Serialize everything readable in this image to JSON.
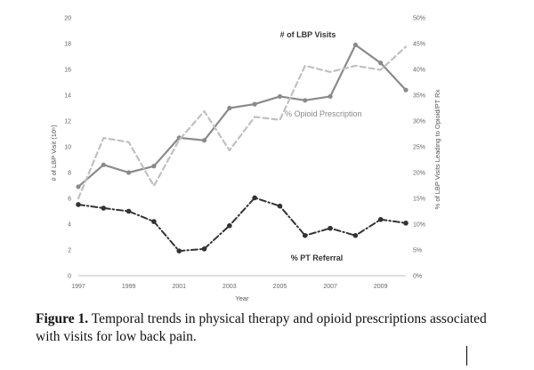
{
  "chart_data": {
    "type": "line",
    "x": [
      1997,
      1998,
      1999,
      2000,
      2001,
      2002,
      2003,
      2004,
      2005,
      2006,
      2007,
      2008,
      2009,
      2010
    ],
    "x_tick_labels": [
      "1997",
      "1999",
      "2001",
      "2003",
      "2005",
      "2007",
      "2009"
    ],
    "x_tick_values": [
      1997,
      1999,
      2001,
      2003,
      2005,
      2007,
      2009
    ],
    "xlabel": "Year",
    "xlim": [
      1997,
      2010
    ],
    "ylabel": "# of LBP Visit (10⁶)",
    "ylim": [
      0,
      20
    ],
    "y_tick_values": [
      0,
      2,
      4,
      6,
      8,
      10,
      12,
      14,
      16,
      18,
      20
    ],
    "y_tick_labels": [
      "0",
      "2",
      "4",
      "6",
      "8",
      "10",
      "12",
      "14",
      "16",
      "18",
      "20"
    ],
    "y2label": "% of LBP Visits Leading to Opioid/PT Rx",
    "y2lim": [
      0,
      50
    ],
    "y2_tick_values": [
      0,
      5,
      10,
      15,
      20,
      25,
      30,
      35,
      40,
      45,
      50
    ],
    "y2_tick_labels": [
      "0%",
      "5%",
      "10%",
      "15%",
      "20%",
      "25%",
      "30%",
      "35%",
      "40%",
      "45%",
      "50%"
    ],
    "series": [
      {
        "name": "# of LBP Visits",
        "axis": "left",
        "style": "solid",
        "color": "#8a8a8a",
        "values": [
          6.9,
          8.6,
          8.0,
          8.5,
          10.7,
          10.5,
          13.0,
          13.3,
          13.9,
          13.6,
          13.9,
          17.9,
          16.5,
          14.4
        ]
      },
      {
        "name": "% Opioid Prescription",
        "axis": "right",
        "style": "dashed",
        "color": "#c0c0c0",
        "values": [
          15,
          26.7,
          25.9,
          17.4,
          26.3,
          31.9,
          24.3,
          30.8,
          30.2,
          40.7,
          39.5,
          40.7,
          39.9,
          44.4
        ]
      },
      {
        "name": "% PT Referral",
        "axis": "right",
        "style": "dash-dot",
        "color": "#333333",
        "values": [
          13.8,
          13.1,
          12.5,
          10.5,
          4.8,
          5.2,
          9.7,
          15.1,
          13.5,
          7.8,
          9.2,
          7.8,
          10.9,
          10.2
        ]
      }
    ],
    "annotations": [
      {
        "text": "# of LBP Visits",
        "near_series": "# of LBP Visits"
      },
      {
        "text": "% Opioid Prescription",
        "near_series": "% Opioid Prescription"
      },
      {
        "text": "% PT Referral",
        "near_series": "% PT Referral"
      }
    ]
  },
  "caption": {
    "label": "Figure 1.",
    "text": " Temporal trends in physical therapy and opioid prescriptions associated with visits for low back pain."
  }
}
